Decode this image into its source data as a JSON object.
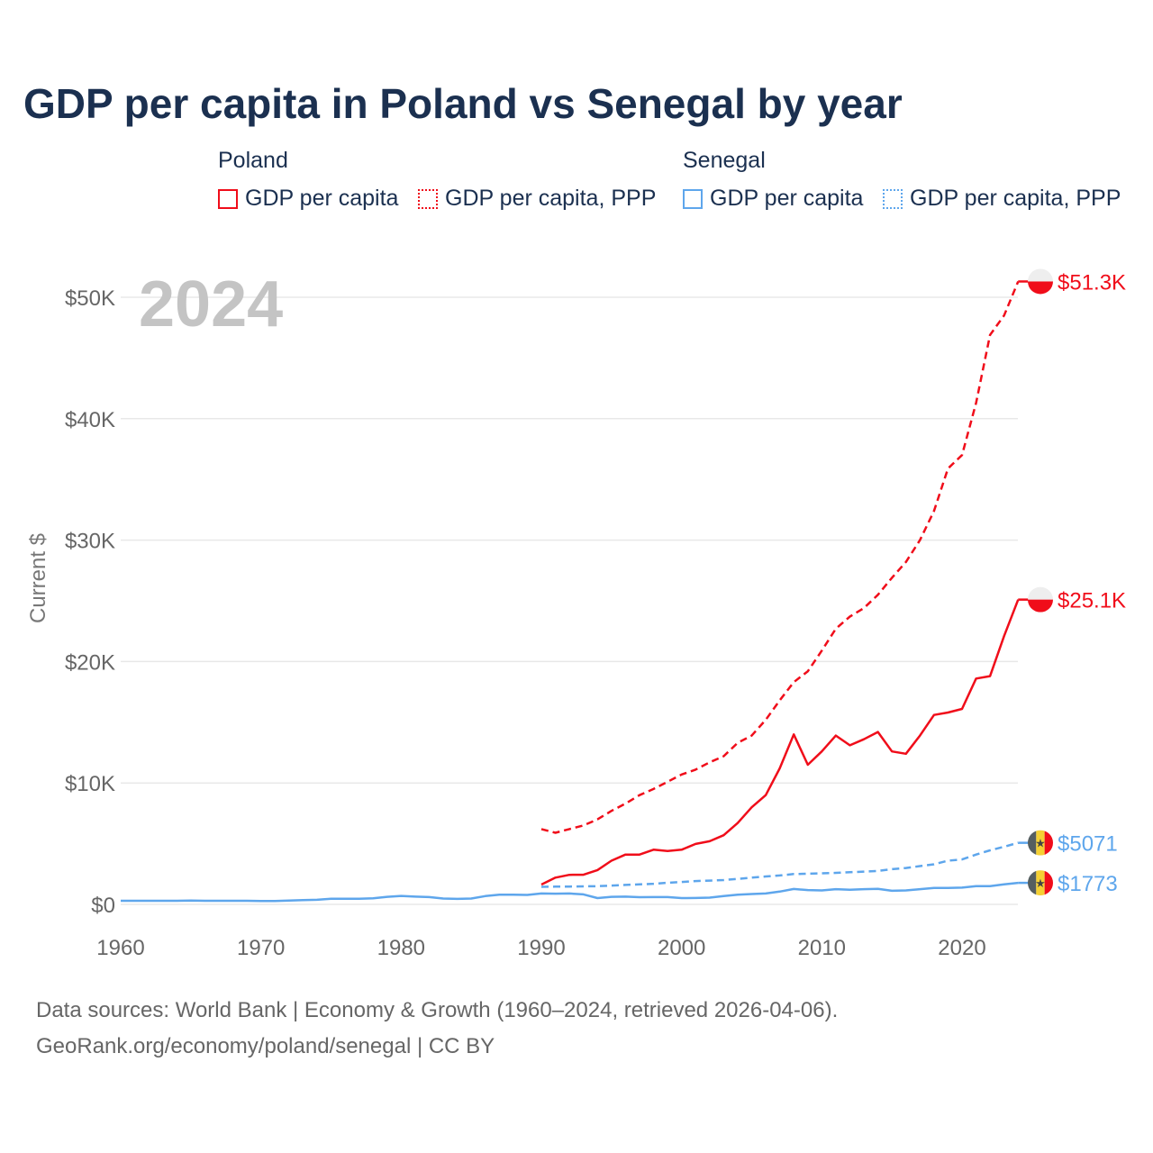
{
  "chart_data": {
    "type": "line",
    "title": "GDP per capita in Poland vs Senegal by year",
    "year_label": "2024",
    "ylabel": "Current $",
    "xlim": [
      1960,
      2024
    ],
    "ylim": [
      0,
      52000
    ],
    "xticks": [
      1960,
      1970,
      1980,
      1990,
      2000,
      2010,
      2020
    ],
    "xtick_labels": [
      "1960",
      "1970",
      "1980",
      "1990",
      "2000",
      "2010",
      "2020"
    ],
    "yticks": [
      0,
      10000,
      20000,
      30000,
      40000,
      50000
    ],
    "ytick_labels": [
      "$0",
      "$10K",
      "$20K",
      "$30K",
      "$40K",
      "$50K"
    ],
    "grid": true,
    "legend": {
      "placement": "top",
      "groups": [
        {
          "name": "Poland",
          "items": [
            "GDP per capita",
            "GDP per capita, PPP"
          ]
        },
        {
          "name": "Senegal",
          "items": [
            "GDP per capita",
            "GDP per capita, PPP"
          ]
        }
      ]
    },
    "colors": {
      "poland": "#f00d1a",
      "senegal": "#5ea6ec"
    },
    "series": [
      {
        "name": "Poland GDP per capita",
        "country": "poland",
        "dashed": false,
        "start": 1990,
        "end_label": "$25.1K",
        "values": [
          1630,
          2200,
          2430,
          2440,
          2830,
          3600,
          4100,
          4100,
          4500,
          4400,
          4500,
          4980,
          5200,
          5700,
          6700,
          8000,
          9000,
          11200,
          14000,
          11500,
          12600,
          13900,
          13100,
          13600,
          14200,
          12600,
          12400,
          13900,
          15600,
          15800,
          16100,
          18600,
          18800,
          22100,
          25100
        ]
      },
      {
        "name": "Poland GDP per capita, PPP",
        "country": "poland",
        "dashed": true,
        "start": 1990,
        "end_label": "$51.3K",
        "values": [
          6200,
          5900,
          6200,
          6500,
          7000,
          7700,
          8300,
          9000,
          9500,
          10100,
          10700,
          11100,
          11700,
          12200,
          13300,
          13900,
          15200,
          16800,
          18300,
          19200,
          20900,
          22700,
          23700,
          24400,
          25500,
          26900,
          28200,
          30000,
          32400,
          35900,
          37000,
          41300,
          46900,
          48500,
          51300
        ]
      },
      {
        "name": "Senegal GDP per capita",
        "country": "senegal",
        "dashed": false,
        "start": 1960,
        "end_label": "$1773",
        "values": [
          300,
          300,
          300,
          300,
          300,
          310,
          300,
          300,
          300,
          300,
          280,
          280,
          310,
          350,
          380,
          470,
          460,
          460,
          500,
          620,
          700,
          640,
          600,
          480,
          450,
          480,
          680,
          800,
          800,
          780,
          900,
          880,
          900,
          820,
          520,
          620,
          640,
          590,
          600,
          600,
          520,
          530,
          560,
          680,
          800,
          850,
          900,
          1050,
          1270,
          1180,
          1150,
          1250,
          1200,
          1250,
          1280,
          1120,
          1150,
          1250,
          1350,
          1350,
          1380,
          1500,
          1500,
          1650,
          1773
        ]
      },
      {
        "name": "Senegal GDP per capita, PPP",
        "country": "senegal",
        "dashed": true,
        "start": 1990,
        "end_label": "$5071",
        "values": [
          1450,
          1460,
          1470,
          1480,
          1500,
          1550,
          1600,
          1650,
          1700,
          1780,
          1850,
          1920,
          1960,
          2000,
          2100,
          2200,
          2300,
          2380,
          2500,
          2520,
          2560,
          2600,
          2650,
          2700,
          2750,
          2900,
          3000,
          3150,
          3300,
          3600,
          3700,
          4100,
          4450,
          4750,
          5071
        ]
      }
    ]
  },
  "footer": {
    "line1": "Data sources: World Bank | Economy & Growth (1960–2024, retrieved 2026-04-06).",
    "line2": "GeoRank.org/economy/poland/senegal | CC BY"
  }
}
